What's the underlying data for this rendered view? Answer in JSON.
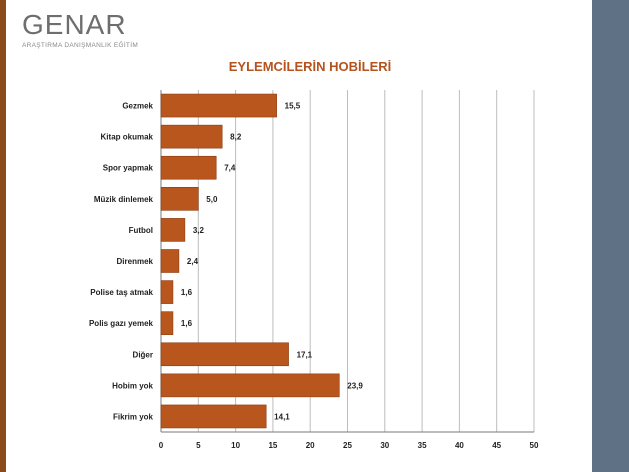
{
  "logo": {
    "name": "GENAR",
    "tagline": "ARAŞTIRMA DANIŞMANLIK EĞİTİM"
  },
  "colors": {
    "bar": "#b8561e",
    "bar_stroke": "#8a3c10",
    "title": "#b5531f",
    "accent_panel": "#5f7185",
    "left_border": "#8a4a1c"
  },
  "chart_data": {
    "type": "bar",
    "orientation": "horizontal",
    "title": "EYLEMCİLERİN HOBİLERİ",
    "xlabel": "",
    "ylabel": "",
    "categories": [
      "Gezmek",
      "Kitap okumak",
      "Spor yapmak",
      "Müzik dinlemek",
      "Futbol",
      "Direnmek",
      "Polise taş atmak",
      "Polis gazı yemek",
      "Diğer",
      "Hobim yok",
      "Fikrim yok"
    ],
    "values": [
      15.5,
      8.2,
      7.4,
      5.0,
      3.2,
      2.4,
      1.6,
      1.6,
      17.1,
      23.9,
      14.1
    ],
    "value_labels": [
      "15,5",
      "8,2",
      "7,4",
      "5,0",
      "3,2",
      "2,4",
      "1,6",
      "1,6",
      "17,1",
      "23,9",
      "14,1"
    ],
    "xlim": [
      0,
      50
    ],
    "xticks": [
      0,
      5,
      10,
      15,
      20,
      25,
      30,
      35,
      40,
      45,
      50
    ],
    "grid": true,
    "legend": "none"
  }
}
